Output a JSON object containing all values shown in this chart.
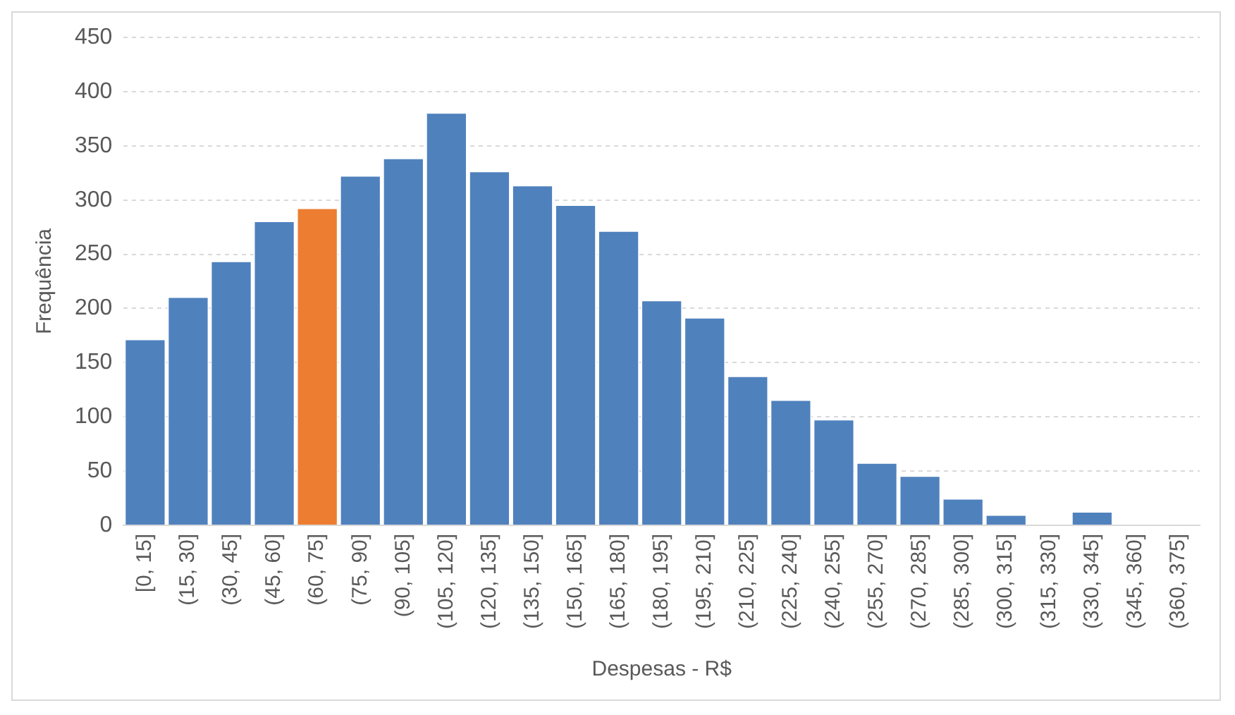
{
  "chart_data": {
    "type": "bar",
    "xlabel": "Despesas - R$",
    "ylabel": "Frequência",
    "categories": [
      "[0, 15]",
      "(15, 30]",
      "(30, 45]",
      "(45, 60]",
      "(60, 75]",
      "(75, 90]",
      "(90, 105]",
      "(105, 120]",
      "(120, 135]",
      "(135, 150]",
      "(150, 165]",
      "(165, 180]",
      "(180, 195]",
      "(195, 210]",
      "(210, 225]",
      "(225, 240]",
      "(240, 255]",
      "(255, 270]",
      "(270, 285]",
      "(285, 300]",
      "(300, 315]",
      "(315, 330]",
      "(330, 345]",
      "(345, 360]",
      "(360, 375]"
    ],
    "values": [
      172,
      211,
      244,
      281,
      293,
      323,
      339,
      381,
      327,
      314,
      296,
      272,
      208,
      192,
      138,
      116,
      98,
      58,
      46,
      25,
      10,
      0,
      13,
      0,
      0
    ],
    "colors": [
      "#4f81bd",
      "#4f81bd",
      "#4f81bd",
      "#4f81bd",
      "#ed7d31",
      "#4f81bd",
      "#4f81bd",
      "#4f81bd",
      "#4f81bd",
      "#4f81bd",
      "#4f81bd",
      "#4f81bd",
      "#4f81bd",
      "#4f81bd",
      "#4f81bd",
      "#4f81bd",
      "#4f81bd",
      "#4f81bd",
      "#4f81bd",
      "#4f81bd",
      "#4f81bd",
      "#4f81bd",
      "#4f81bd",
      "#4f81bd",
      "#4f81bd"
    ],
    "ylim": [
      0,
      450
    ],
    "yticks": [
      0,
      50,
      100,
      150,
      200,
      250,
      300,
      350,
      400,
      450
    ],
    "grid": "y",
    "legend": false
  }
}
